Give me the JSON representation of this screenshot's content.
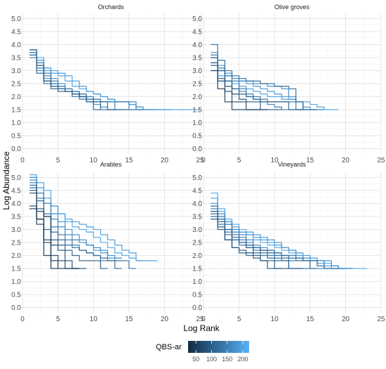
{
  "chart_data": {
    "type": "line",
    "xlabel": "Log Rank",
    "ylabel": "Log Abundance",
    "xlim": [
      0,
      25
    ],
    "ylim": [
      -0.2,
      5.2
    ],
    "x_ticks": [
      0,
      5,
      10,
      15,
      20,
      25
    ],
    "y_ticks": [
      0.0,
      0.5,
      1.0,
      1.5,
      2.0,
      2.5,
      3.0,
      3.5,
      4.0,
      4.5,
      5.0
    ],
    "grid": true,
    "legend": {
      "title": "QBS-ar",
      "placement": "bottom",
      "ticks": [
        50,
        100,
        150,
        200
      ],
      "range": [
        25,
        220
      ],
      "color_low": "#132B43",
      "color_high": "#56B1F7"
    },
    "facets": [
      {
        "title": "Orchards",
        "series": [
          {
            "qbs": 200,
            "y": [
              3.8,
              3.5,
              3.1,
              2.9,
              2.8,
              2.6,
              2.4,
              2.3,
              2.2,
              2.1,
              2.0,
              1.9,
              1.8,
              1.8,
              1.7,
              1.6,
              1.5,
              1.5,
              1.5,
              1.5,
              1.5,
              1.5,
              1.5,
              1.5
            ]
          },
          {
            "qbs": 190,
            "y": [
              3.7,
              3.3,
              3.1,
              3.0,
              2.9,
              2.8,
              2.6,
              2.4,
              2.2,
              2.1,
              2.0,
              1.9,
              1.8,
              1.8,
              1.7,
              1.6,
              1.5,
              1.5,
              1.5,
              1.5
            ]
          },
          {
            "qbs": 175,
            "y": [
              3.8,
              3.4,
              3.0,
              2.7,
              2.5,
              2.3,
              2.2,
              2.0,
              1.8,
              1.7,
              1.6,
              1.5,
              1.5,
              1.5,
              1.5,
              1.5,
              1.5,
              1.5
            ]
          },
          {
            "qbs": 160,
            "y": [
              3.6,
              3.0,
              2.7,
              2.5,
              2.4,
              2.3,
              2.2,
              2.1,
              2.0,
              1.9,
              1.8,
              1.8,
              1.8,
              1.8,
              1.8,
              1.5
            ]
          },
          {
            "qbs": 150,
            "y": [
              3.8,
              3.3,
              2.9,
              2.6,
              2.4,
              2.3,
              2.2,
              2.1,
              2.0,
              1.9,
              1.8,
              1.8,
              1.5
            ]
          },
          {
            "qbs": 145,
            "y": [
              3.5,
              3.1,
              2.8,
              2.5,
              2.3,
              2.2,
              2.1,
              2.0,
              1.9,
              1.8,
              1.8,
              1.8,
              1.8,
              1.8,
              1.5,
              1.5
            ]
          },
          {
            "qbs": 130,
            "y": [
              3.7,
              3.2,
              2.6,
              2.4,
              2.3,
              2.2,
              2.0,
              1.9,
              1.8,
              1.8,
              1.8,
              1.5,
              1.5,
              1.5
            ]
          },
          {
            "qbs": 115,
            "y": [
              3.6,
              2.9,
              2.5,
              2.4,
              2.3,
              2.2,
              2.1,
              2.0,
              1.9,
              1.8,
              1.5,
              1.5
            ]
          },
          {
            "qbs": 100,
            "y": [
              3.8,
              3.2,
              2.6,
              2.3,
              2.2,
              2.2,
              2.1,
              2.0,
              1.8,
              1.5
            ]
          }
        ]
      },
      {
        "title": "Olive groves",
        "series": [
          {
            "qbs": 200,
            "y": [
              3.0,
              2.8,
              2.6,
              2.5,
              2.4,
              2.3,
              2.2,
              2.1,
              2.0,
              2.0,
              1.9,
              1.9,
              1.8,
              1.8,
              1.7,
              1.6,
              1.5,
              1.5
            ]
          },
          {
            "qbs": 185,
            "y": [
              3.7,
              3.2,
              2.9,
              2.7,
              2.6,
              2.5,
              2.4,
              2.3,
              2.2,
              2.1,
              2.0,
              1.9,
              1.8,
              1.6,
              1.5,
              1.5
            ]
          },
          {
            "qbs": 170,
            "y": [
              3.3,
              3.0,
              2.8,
              2.7,
              2.6,
              2.6,
              2.5,
              2.5,
              2.4,
              2.4,
              2.3,
              2.0,
              1.8,
              1.5,
              1.5,
              1.5
            ]
          },
          {
            "qbs": 155,
            "y": [
              3.5,
              3.0,
              2.6,
              2.3,
              2.2,
              2.0,
              1.9,
              1.8,
              1.7,
              1.6,
              1.5,
              1.5,
              1.5,
              1.5
            ]
          },
          {
            "qbs": 140,
            "y": [
              3.6,
              3.1,
              2.8,
              2.6,
              2.3,
              2.1,
              2.0,
              1.9,
              1.8,
              1.8,
              1.8,
              1.8,
              1.5
            ]
          },
          {
            "qbs": 125,
            "y": [
              4.0,
              3.4,
              3.0,
              2.8,
              2.7,
              2.6,
              2.6,
              2.5,
              2.5,
              2.4,
              2.4,
              2.3,
              1.8,
              1.5,
              1.5
            ]
          },
          {
            "qbs": 110,
            "y": [
              3.5,
              3.0,
              2.6,
              2.3,
              2.1,
              2.0,
              1.9,
              1.8,
              1.8,
              1.8,
              1.8,
              1.5,
              1.5
            ]
          },
          {
            "qbs": 90,
            "y": [
              3.3,
              2.7,
              2.4,
              2.1,
              1.9,
              1.8,
              1.8,
              1.5,
              1.5,
              1.5
            ]
          },
          {
            "qbs": 75,
            "y": [
              3.2,
              2.6,
              2.2,
              1.8,
              1.8,
              1.5,
              1.5,
              1.5
            ]
          },
          {
            "qbs": 55,
            "y": [
              3.0,
              2.3,
              1.8,
              1.5,
              1.5,
              1.5,
              1.5
            ]
          }
        ]
      },
      {
        "title": "Arables",
        "series": [
          {
            "qbs": 205,
            "y": [
              5.1,
              4.8,
              4.5,
              3.9,
              3.6,
              3.3,
              3.1,
              3.0,
              2.9,
              2.7,
              2.5,
              2.3,
              2.1,
              2.0,
              1.9,
              1.8
            ]
          },
          {
            "qbs": 190,
            "y": [
              5.0,
              4.6,
              4.2,
              3.9,
              3.6,
              3.4,
              3.3,
              3.2,
              3.1,
              3.0,
              2.8,
              2.6,
              2.4,
              2.2,
              2.1,
              1.8,
              1.8,
              1.8
            ]
          },
          {
            "qbs": 175,
            "y": [
              5.0,
              4.4,
              4.0,
              3.6,
              3.3,
              3.0,
              2.8,
              2.6,
              2.4,
              2.2,
              2.1,
              1.9,
              1.8
            ]
          },
          {
            "qbs": 160,
            "y": [
              4.8,
              4.4,
              4.0,
              3.4,
              3.1,
              2.8,
              2.6,
              2.5,
              2.4,
              2.3,
              2.2,
              2.0,
              1.9
            ]
          },
          {
            "qbs": 140,
            "y": [
              4.9,
              4.2,
              3.6,
              3.1,
              2.8,
              2.6,
              2.4,
              2.2,
              2.1,
              2.0,
              1.8,
              1.8,
              1.8,
              1.8,
              1.5
            ]
          },
          {
            "qbs": 120,
            "y": [
              4.6,
              4.1,
              3.5,
              2.9,
              2.6,
              2.4,
              2.3,
              2.2,
              2.1,
              2.0,
              1.9,
              1.8,
              1.5
            ]
          },
          {
            "qbs": 100,
            "y": [
              4.7,
              3.8,
              3.0,
              2.6,
              2.4,
              2.2,
              2.0,
              1.8,
              1.8,
              1.8,
              1.5
            ]
          },
          {
            "qbs": 80,
            "y": [
              4.5,
              3.4,
              2.6,
              2.4,
              2.2,
              1.8,
              1.5,
              1.5
            ]
          },
          {
            "qbs": 65,
            "y": [
              4.4,
              3.2,
              2.5,
              2.0,
              1.8,
              1.5,
              1.5
            ]
          },
          {
            "qbs": 50,
            "y": [
              3.9,
              3.7,
              3.5,
              1.8,
              1.5,
              1.5,
              1.5
            ]
          },
          {
            "qbs": 40,
            "y": [
              3.8,
              3.4,
              2.0,
              1.5
            ]
          }
        ]
      },
      {
        "title": "Vineyards",
        "series": [
          {
            "qbs": 210,
            "y": [
              4.4,
              3.8,
              3.4,
              3.2,
              3.0,
              2.8,
              2.6,
              2.5,
              2.4,
              2.3,
              2.2,
              2.1,
              2.0,
              1.9,
              1.8,
              1.8,
              1.7,
              1.6,
              1.5,
              1.5,
              1.5,
              1.5
            ]
          },
          {
            "qbs": 195,
            "y": [
              4.2,
              3.7,
              3.3,
              3.1,
              2.9,
              2.8,
              2.7,
              2.6,
              2.5,
              2.4,
              2.3,
              2.2,
              2.0,
              1.9,
              1.8,
              1.7,
              1.6,
              1.5,
              1.5,
              1.5
            ]
          },
          {
            "qbs": 180,
            "y": [
              4.0,
              3.5,
              3.2,
              3.0,
              2.9,
              2.9,
              2.8,
              2.7,
              2.6,
              2.5,
              2.3,
              2.2,
              2.1,
              2.0,
              1.9,
              1.8,
              1.8,
              1.6,
              1.5,
              1.5
            ]
          },
          {
            "qbs": 165,
            "y": [
              3.9,
              3.6,
              3.3,
              3.0,
              2.8,
              2.6,
              2.4,
              2.3,
              2.2,
              2.1,
              2.0,
              1.9,
              1.9,
              1.8,
              1.8,
              1.8,
              1.5,
              1.5,
              1.5
            ]
          },
          {
            "qbs": 150,
            "y": [
              3.8,
              3.5,
              3.2,
              2.9,
              2.7,
              2.5,
              2.3,
              2.2,
              2.1,
              2.0,
              2.0,
              1.9,
              1.8,
              1.8,
              1.5,
              1.5
            ]
          },
          {
            "qbs": 140,
            "y": [
              3.7,
              3.4,
              3.0,
              2.8,
              2.6,
              2.4,
              2.3,
              2.2,
              2.1,
              2.0,
              1.9,
              1.8,
              1.8,
              1.8,
              1.5
            ]
          },
          {
            "qbs": 130,
            "y": [
              3.9,
              3.4,
              2.9,
              2.6,
              2.4,
              2.3,
              2.2,
              2.1,
              2.0,
              1.9,
              1.8,
              1.5,
              1.5,
              1.5
            ]
          },
          {
            "qbs": 120,
            "y": [
              3.6,
              3.2,
              2.8,
              2.6,
              2.5,
              2.4,
              2.3,
              2.2,
              2.2,
              2.1,
              2.0,
              2.0,
              1.9,
              1.8,
              1.8,
              1.6,
              1.5,
              1.5
            ]
          },
          {
            "qbs": 110,
            "y": [
              3.5,
              3.3,
              3.0,
              2.7,
              2.5,
              2.3,
              2.1,
              2.0,
              1.9,
              1.8,
              1.8,
              1.5,
              1.5
            ]
          },
          {
            "qbs": 100,
            "y": [
              3.7,
              3.1,
              2.6,
              2.3,
              2.1,
              2.0,
              1.9,
              1.8,
              1.8,
              1.5,
              1.5
            ]
          },
          {
            "qbs": 90,
            "y": [
              3.4,
              3.0,
              2.6,
              2.3,
              2.2,
              2.1,
              2.0,
              1.8,
              1.5,
              1.5
            ]
          }
        ]
      }
    ]
  }
}
